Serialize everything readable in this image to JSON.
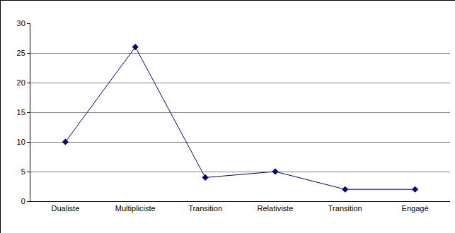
{
  "chart_data": {
    "type": "line",
    "categories": [
      "Dualiste",
      "Multipliciste",
      "Transition",
      "Relativiste",
      "Transition",
      "Engagé"
    ],
    "values": [
      10,
      26,
      4,
      5,
      2,
      2
    ],
    "color": "#000080",
    "marker": "diamond",
    "line_style": "solid",
    "ylim": [
      0,
      30
    ],
    "yticks": [
      0,
      5,
      10,
      15,
      20,
      25,
      30
    ],
    "grid": true
  }
}
